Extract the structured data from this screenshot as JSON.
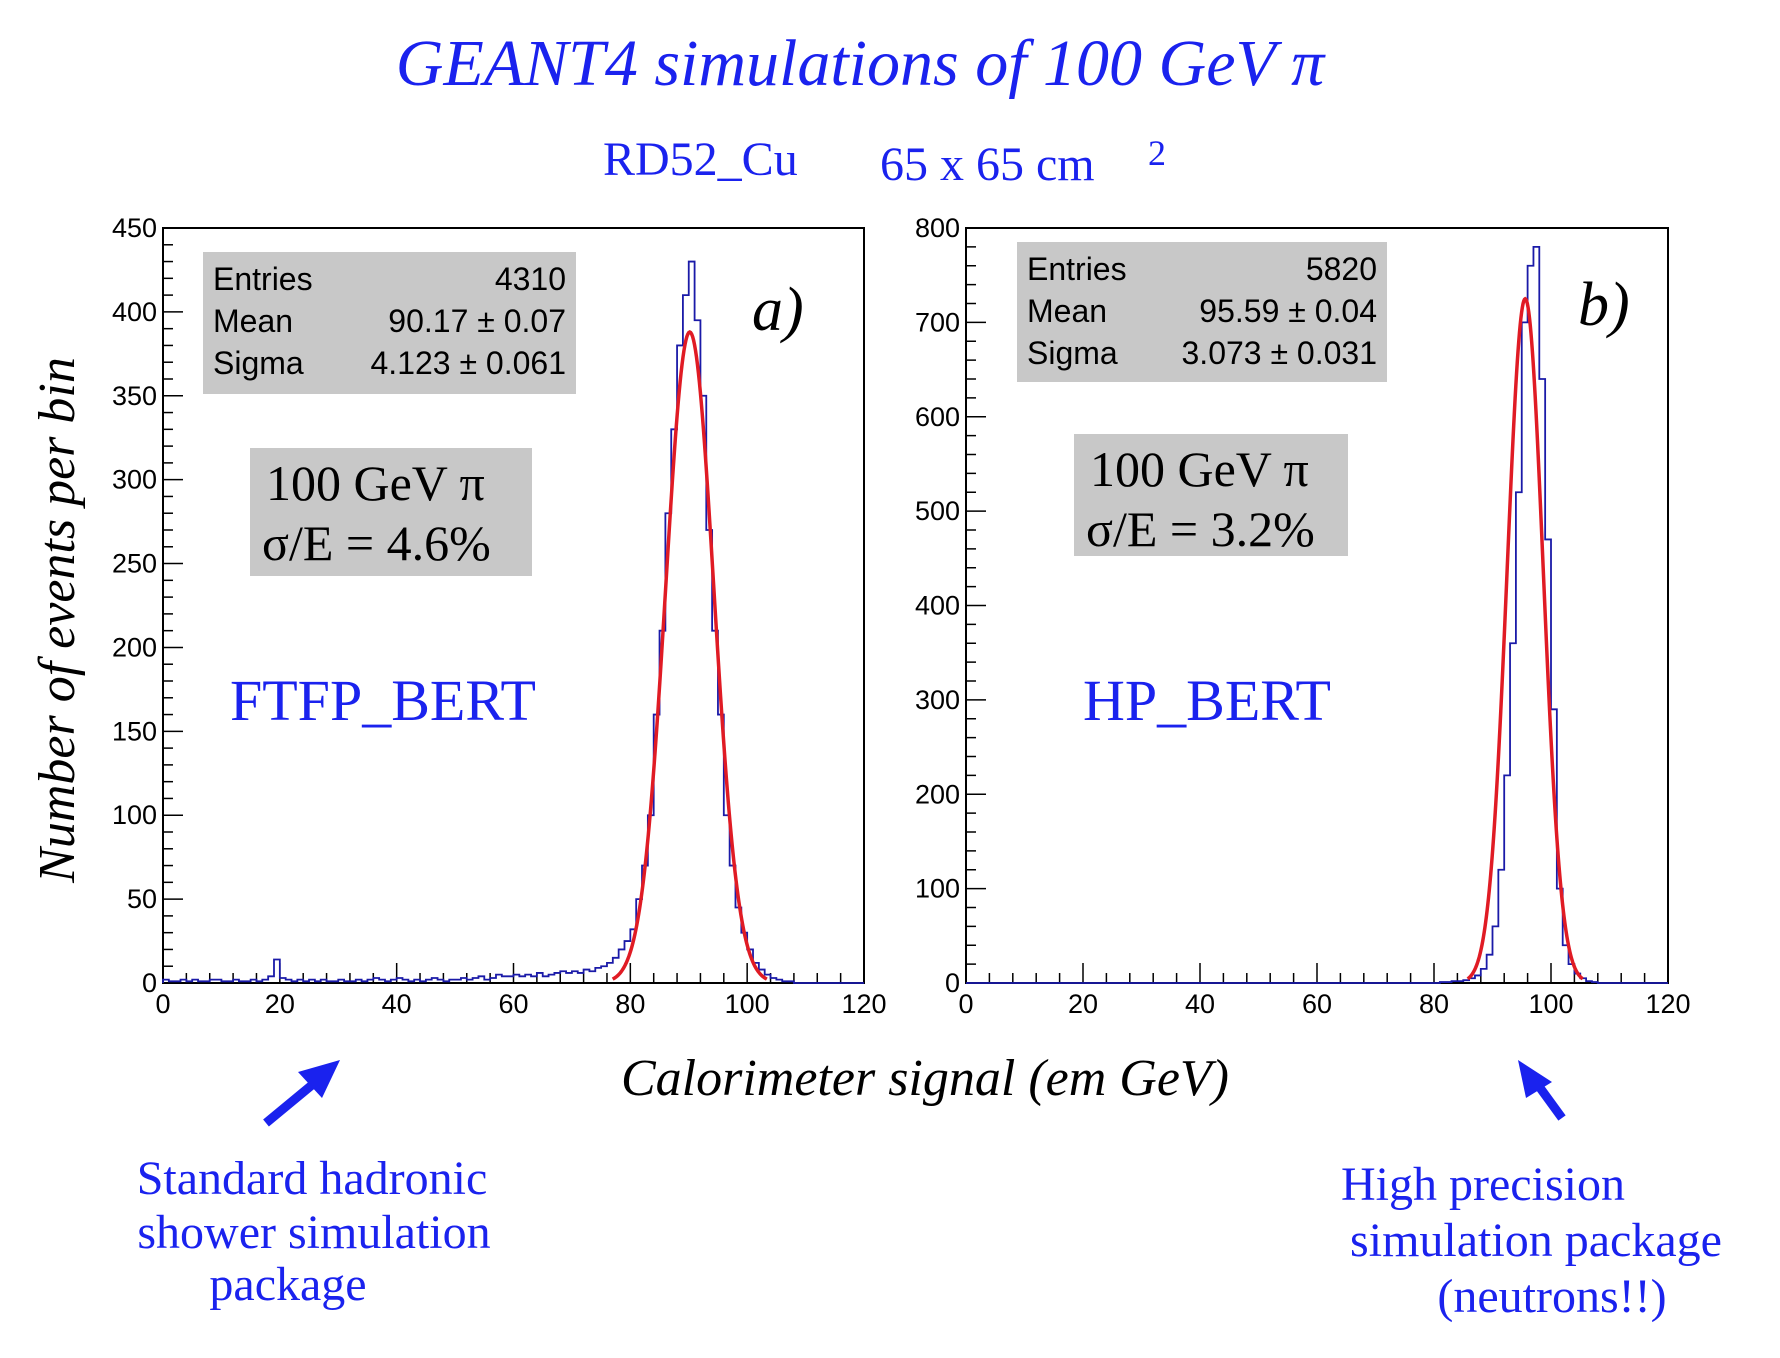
{
  "title": "GEANT4 simulations of 100 GeV π",
  "subtitle_left": "RD52_Cu",
  "subtitle_right": "65 x 65 cm",
  "subtitle_sup": "2",
  "ylabel": "Number of events per bin",
  "xlabel": "Calorimeter signal (em GeV)",
  "colors": {
    "accent_blue": "#1a22ee",
    "hist": "#1a1aa8",
    "fit": "#e01b24",
    "statbox": "#c8c8c8"
  },
  "annotations": {
    "left": [
      "Standard hadronic",
      "shower simulation",
      "package"
    ],
    "right": [
      "High precision",
      "simulation package",
      "(neutrons!!)"
    ],
    "arrow_icons": [
      "arrow-up-right-icon",
      "arrow-up-left-icon"
    ]
  },
  "chart_data": [
    {
      "type": "line",
      "panel": "a)",
      "model": "FTFP_BERT",
      "beam_label": "100 GeV π",
      "resolution_label": "σ/E = 4.6%",
      "stats": {
        "entries_label": "Entries",
        "entries": "4310",
        "mean_label": "Mean",
        "mean": "90.17 ± 0.07",
        "sigma_label": "Sigma",
        "sigma": "4.123 ± 0.061"
      },
      "xlim": [
        0,
        120
      ],
      "ylim": [
        0,
        450
      ],
      "xticks": [
        "0",
        "20",
        "40",
        "60",
        "80",
        "100",
        "120"
      ],
      "yticks": [
        "0",
        "50",
        "100",
        "150",
        "200",
        "250",
        "300",
        "350",
        "400",
        "450"
      ],
      "grid": false,
      "histogram": {
        "bin_width": 1,
        "x_start": 0,
        "values": [
          2,
          1,
          1,
          2,
          1,
          2,
          1,
          1,
          2,
          2,
          1,
          1,
          2,
          1,
          1,
          2,
          1,
          2,
          4,
          14,
          3,
          2,
          1,
          2,
          1,
          2,
          1,
          2,
          1,
          1,
          2,
          1,
          1,
          2,
          1,
          2,
          3,
          2,
          1,
          2,
          3,
          2,
          1,
          2,
          1,
          2,
          3,
          2,
          1,
          2,
          2,
          3,
          2,
          3,
          4,
          2,
          3,
          5,
          4,
          4,
          5,
          4,
          5,
          4,
          6,
          4,
          5,
          6,
          7,
          6,
          7,
          6,
          8,
          7,
          9,
          10,
          12,
          15,
          20,
          25,
          32,
          50,
          70,
          100,
          160,
          210,
          280,
          330,
          380,
          410,
          430,
          395,
          350,
          270,
          210,
          160,
          100,
          70,
          45,
          30,
          20,
          12,
          8,
          5,
          3,
          2,
          1,
          1,
          0,
          0,
          0,
          0,
          0,
          0,
          0,
          0,
          0,
          0,
          0,
          0
        ]
      },
      "fit": {
        "name": "Gaussian",
        "mean": 90.17,
        "sigma": 4.123,
        "peak": 388
      }
    },
    {
      "type": "line",
      "panel": "b)",
      "model": "HP_BERT",
      "beam_label": "100 GeV π",
      "resolution_label": "σ/E = 3.2%",
      "stats": {
        "entries_label": "Entries",
        "entries": "5820",
        "mean_label": "Mean",
        "mean": "95.59 ± 0.04",
        "sigma_label": "Sigma",
        "sigma": "3.073 ± 0.031"
      },
      "xlim": [
        0,
        120
      ],
      "ylim": [
        0,
        800
      ],
      "xticks": [
        "0",
        "20",
        "40",
        "60",
        "80",
        "100",
        "120"
      ],
      "yticks": [
        "0",
        "100",
        "200",
        "300",
        "400",
        "500",
        "600",
        "700",
        "800"
      ],
      "grid": false,
      "histogram": {
        "bin_width": 1,
        "x_start": 0,
        "values": [
          0,
          0,
          0,
          0,
          0,
          0,
          0,
          0,
          0,
          0,
          0,
          0,
          0,
          0,
          0,
          0,
          0,
          0,
          0,
          0,
          0,
          0,
          0,
          0,
          0,
          0,
          0,
          0,
          0,
          0,
          0,
          0,
          0,
          0,
          0,
          0,
          0,
          0,
          0,
          0,
          0,
          0,
          0,
          0,
          0,
          0,
          0,
          0,
          0,
          0,
          0,
          0,
          0,
          0,
          0,
          0,
          0,
          0,
          0,
          0,
          0,
          0,
          0,
          0,
          0,
          0,
          0,
          0,
          0,
          0,
          0,
          0,
          0,
          0,
          0,
          0,
          0,
          0,
          0,
          0,
          0,
          1,
          1,
          2,
          2,
          3,
          5,
          8,
          15,
          30,
          60,
          120,
          220,
          360,
          520,
          700,
          760,
          780,
          640,
          470,
          290,
          100,
          40,
          20,
          10,
          5,
          2,
          1,
          0,
          0,
          0,
          0,
          0,
          0,
          0,
          0,
          0,
          0,
          0,
          0
        ]
      },
      "fit": {
        "name": "Gaussian",
        "mean": 95.59,
        "sigma": 3.073,
        "peak": 725
      }
    }
  ]
}
